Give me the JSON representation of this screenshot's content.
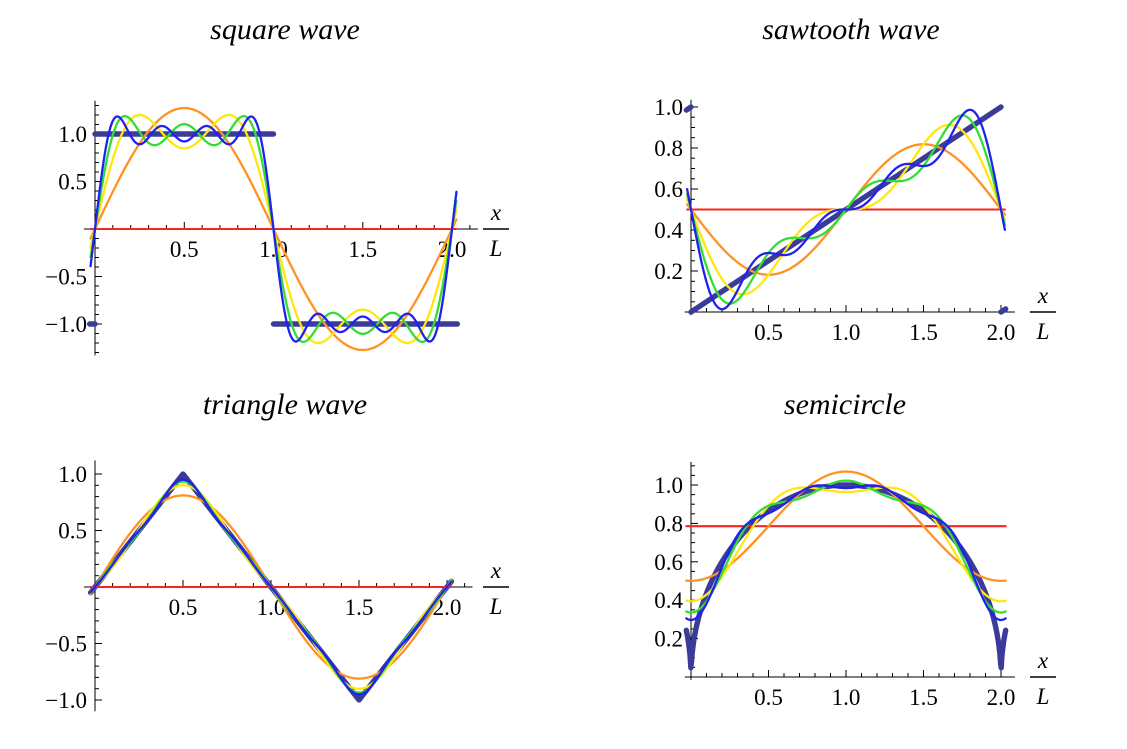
{
  "figure": {
    "background_color": "#ffffff",
    "axis_color": "#000000",
    "tick_label_color": "#000000",
    "exact_color": "#3B3B99",
    "series_palette": [
      "#F5261B",
      "#FF9222",
      "#FFE70D",
      "#33DD33",
      "#2222EE"
    ]
  },
  "x_axis_label": {
    "numerator": "x",
    "denominator": "L"
  },
  "chart_data": [
    {
      "type": "line",
      "title": "square wave",
      "function": "square",
      "x_axis_label": "x/L",
      "xlim": [
        0,
        2
      ],
      "ylim": [
        -1.3,
        1.3
      ],
      "x_ticks": [
        0.5,
        1.0,
        1.5,
        2.0
      ],
      "x_tick_labels": [
        "0.5",
        "1.0",
        "1.5",
        "2.0"
      ],
      "x_minor_tick_step": 0.1,
      "y_ticks": [
        1.0,
        0.5,
        -0.5,
        -1.0
      ],
      "y_tick_labels": [
        "1.0",
        "0.5",
        "−0.5",
        "−1.0"
      ],
      "y_minor_tick_step": 0.1,
      "grid": false,
      "legend": "none",
      "mean_value": 0,
      "exact_description": "f = +1 for 0 < x/L < 1, f = −1 for 1 < x/L < 2",
      "series": [
        {
          "name": "exact square wave",
          "role": "exact",
          "color": "#3B3B99",
          "stroke_width": 5.4
        },
        {
          "name": "partial sum, 0 terms (mean)",
          "role": "partial_sum",
          "fourier_terms": 0,
          "color": "#F5261B",
          "stroke_width": 2.1
        },
        {
          "name": "partial sum, 1 term",
          "role": "partial_sum",
          "fourier_terms": 1,
          "color": "#FF9222",
          "stroke_width": 2.3
        },
        {
          "name": "partial sum, 2 terms",
          "role": "partial_sum",
          "fourier_terms": 2,
          "color": "#FFE70D",
          "stroke_width": 2.3
        },
        {
          "name": "partial sum, 3 terms",
          "role": "partial_sum",
          "fourier_terms": 3,
          "color": "#33DD33",
          "stroke_width": 2.3
        },
        {
          "name": "partial sum, 4 terms",
          "role": "partial_sum",
          "fourier_terms": 4,
          "color": "#2222EE",
          "stroke_width": 2.3
        }
      ]
    },
    {
      "type": "line",
      "title": "sawtooth wave",
      "function": "sawtooth",
      "x_axis_label": "x/L",
      "xlim": [
        0,
        2
      ],
      "ylim": [
        0,
        1
      ],
      "x_ticks": [
        0.5,
        1.0,
        1.5,
        2.0
      ],
      "x_tick_labels": [
        "0.5",
        "1.0",
        "1.5",
        "2.0"
      ],
      "x_minor_tick_step": 0.1,
      "y_ticks": [
        0.2,
        0.4,
        0.6,
        0.8,
        1.0
      ],
      "y_tick_labels": [
        "0.2",
        "0.4",
        "0.6",
        "0.8",
        "1.0"
      ],
      "y_minor_tick_step": 0.05,
      "grid": false,
      "legend": "none",
      "mean_value": 0.5,
      "exact_description": "f = x/(2L) for 0 < x/L < 2",
      "series": [
        {
          "name": "exact sawtooth wave",
          "role": "exact",
          "color": "#3B3B99",
          "stroke_width": 5.4
        },
        {
          "name": "partial sum, 0 terms (mean)",
          "role": "partial_sum",
          "fourier_terms": 0,
          "color": "#F5261B",
          "stroke_width": 2.1
        },
        {
          "name": "partial sum, 1 term",
          "role": "partial_sum",
          "fourier_terms": 1,
          "color": "#FF9222",
          "stroke_width": 2.3
        },
        {
          "name": "partial sum, 2 terms",
          "role": "partial_sum",
          "fourier_terms": 2,
          "color": "#FFE70D",
          "stroke_width": 2.3
        },
        {
          "name": "partial sum, 3 terms",
          "role": "partial_sum",
          "fourier_terms": 3,
          "color": "#33DD33",
          "stroke_width": 2.3
        },
        {
          "name": "partial sum, 4 terms",
          "role": "partial_sum",
          "fourier_terms": 4,
          "color": "#2222EE",
          "stroke_width": 2.3
        }
      ]
    },
    {
      "type": "line",
      "title": "triangle wave",
      "function": "triangle",
      "x_axis_label": "x/L",
      "xlim": [
        0,
        2
      ],
      "ylim": [
        -1.1,
        1.1
      ],
      "x_ticks": [
        0.5,
        1.0,
        1.5,
        2.0
      ],
      "x_tick_labels": [
        "0.5",
        "1.0",
        "1.5",
        "2.0"
      ],
      "x_minor_tick_step": 0.1,
      "y_ticks": [
        1.0,
        0.5,
        -0.5,
        -1.0
      ],
      "y_tick_labels": [
        "1.0",
        "0.5",
        "−0.5",
        "−1.0"
      ],
      "y_minor_tick_step": 0.1,
      "grid": false,
      "legend": "none",
      "mean_value": 0,
      "exact_description": "triangle: 0 at x/L = 0, peak +1 at x/L = 0.5, −1 at x/L = 1.5, 0 at x/L = 2",
      "series": [
        {
          "name": "exact triangle wave",
          "role": "exact",
          "color": "#3B3B99",
          "stroke_width": 5.4
        },
        {
          "name": "partial sum, 0 terms (mean)",
          "role": "partial_sum",
          "fourier_terms": 0,
          "color": "#F5261B",
          "stroke_width": 2.1
        },
        {
          "name": "partial sum, 1 term",
          "role": "partial_sum",
          "fourier_terms": 1,
          "color": "#FF9222",
          "stroke_width": 2.3
        },
        {
          "name": "partial sum, 2 terms",
          "role": "partial_sum",
          "fourier_terms": 2,
          "color": "#FFE70D",
          "stroke_width": 2.3
        },
        {
          "name": "partial sum, 3 terms",
          "role": "partial_sum",
          "fourier_terms": 3,
          "color": "#33DD33",
          "stroke_width": 2.3
        },
        {
          "name": "partial sum, 4 terms",
          "role": "partial_sum",
          "fourier_terms": 4,
          "color": "#2222EE",
          "stroke_width": 2.3
        }
      ]
    },
    {
      "type": "line",
      "title": "semicircle",
      "function": "semicircle",
      "x_axis_label": "x/L",
      "xlim": [
        0,
        2
      ],
      "ylim": [
        0,
        1.1
      ],
      "x_ticks": [
        0.5,
        1.0,
        1.5,
        2.0
      ],
      "x_tick_labels": [
        "0.5",
        "1.0",
        "1.5",
        "2.0"
      ],
      "x_minor_tick_step": 0.1,
      "y_ticks": [
        0.2,
        0.4,
        0.6,
        0.8,
        1.0
      ],
      "y_tick_labels": [
        "0.2",
        "0.4",
        "0.6",
        "0.8",
        "1.0"
      ],
      "y_minor_tick_step": 0.05,
      "grid": false,
      "legend": "none",
      "mean_value": 0.7854,
      "exact_description": "f = sqrt(1 − (x/L − 1)^2) for 0 < x/L < 2",
      "series": [
        {
          "name": "exact semicircle",
          "role": "exact",
          "color": "#3B3B99",
          "stroke_width": 5.4
        },
        {
          "name": "partial sum, 0 terms (mean)",
          "role": "partial_sum",
          "fourier_terms": 0,
          "color": "#F5261B",
          "stroke_width": 2.1
        },
        {
          "name": "partial sum, 1 term",
          "role": "partial_sum",
          "fourier_terms": 1,
          "color": "#FF9222",
          "stroke_width": 2.3
        },
        {
          "name": "partial sum, 2 terms",
          "role": "partial_sum",
          "fourier_terms": 2,
          "color": "#FFE70D",
          "stroke_width": 2.3
        },
        {
          "name": "partial sum, 3 terms",
          "role": "partial_sum",
          "fourier_terms": 3,
          "color": "#33DD33",
          "stroke_width": 2.3
        },
        {
          "name": "partial sum, 4 terms",
          "role": "partial_sum",
          "fourier_terms": 4,
          "color": "#2222EE",
          "stroke_width": 2.3
        }
      ]
    }
  ]
}
